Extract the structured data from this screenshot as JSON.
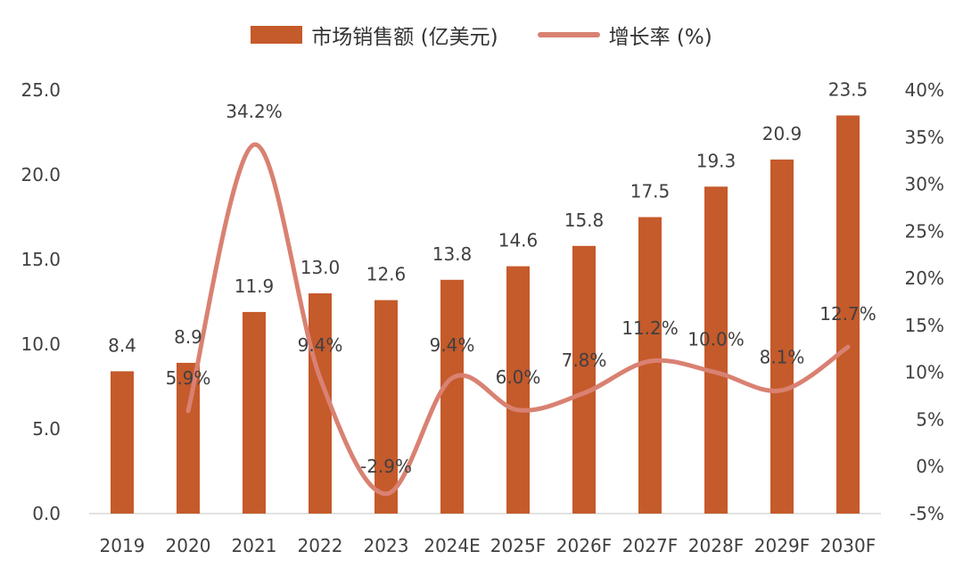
{
  "legend": {
    "bar_label": "市场销售额 (亿美元)",
    "line_label": "增长率 (%)"
  },
  "colors": {
    "bar": "#C55A2B",
    "line": "#D98172",
    "axis": "#D9D9D9",
    "text": "#404040"
  },
  "chart_data": {
    "type": "bar",
    "categories": [
      "2019",
      "2020",
      "2021",
      "2022",
      "2023",
      "2024E",
      "2025F",
      "2026F",
      "2027F",
      "2028F",
      "2029F",
      "2030F"
    ],
    "series": [
      {
        "name": "市场销售额 (亿美元)",
        "type": "bar",
        "axis": "left",
        "values": [
          8.4,
          8.9,
          11.9,
          13.0,
          12.6,
          13.8,
          14.6,
          15.8,
          17.5,
          19.3,
          20.9,
          23.5
        ],
        "labels": [
          "8.4",
          "8.9",
          "11.9",
          "13.0",
          "12.6",
          "13.8",
          "14.6",
          "15.8",
          "17.5",
          "19.3",
          "20.9",
          "23.5"
        ]
      },
      {
        "name": "增长率 (%)",
        "type": "line",
        "axis": "right",
        "smooth": true,
        "values": [
          null,
          5.9,
          34.2,
          9.4,
          -2.9,
          9.4,
          6.0,
          7.8,
          11.2,
          10.0,
          8.1,
          12.7
        ],
        "labels": [
          null,
          "5.9%",
          "34.2%",
          "9.4%",
          "-2.9%",
          "9.4%",
          "6.0%",
          "7.8%",
          "11.2%",
          "10.0%",
          "8.1%",
          "12.7%"
        ]
      }
    ],
    "y_left": {
      "lim": [
        0,
        25
      ],
      "ticks": [
        "0.0",
        "5.0",
        "10.0",
        "15.0",
        "20.0",
        "25.0"
      ]
    },
    "y_right": {
      "lim": [
        -5,
        40
      ],
      "ticks": [
        "-5%",
        "0%",
        "5%",
        "10%",
        "15%",
        "20%",
        "25%",
        "30%",
        "35%",
        "40%"
      ]
    },
    "grid": false,
    "legend_position": "top"
  }
}
